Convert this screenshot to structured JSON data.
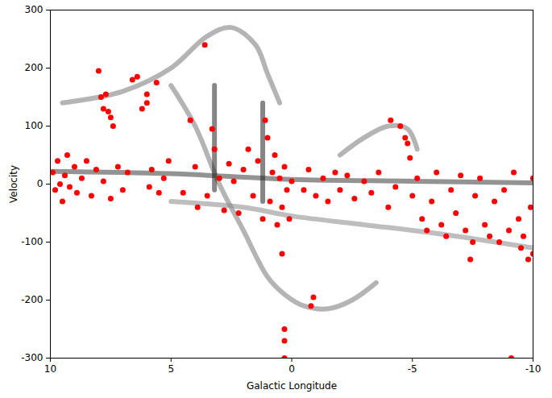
{
  "chart_data": {
    "type": "scatter",
    "x_label": "Galactic Longitude",
    "y_label": "Velocity",
    "xlim": [
      10,
      -10
    ],
    "xticks": [
      10,
      5,
      0,
      -5,
      -10
    ],
    "ylim": [
      -300,
      300
    ],
    "yticks": [
      -300,
      -200,
      -100,
      0,
      100,
      200,
      300
    ],
    "grid": false,
    "series": [
      {
        "type": "line",
        "color": "#3a3a3a",
        "x": [
          10,
          5,
          0,
          -5,
          -10
        ],
        "y": [
          22,
          18,
          8,
          5,
          2
        ]
      },
      {
        "type": "line",
        "color": "#777777",
        "x": [
          9.5,
          7,
          5,
          3.5,
          2.5,
          1.5,
          1,
          0.5
        ],
        "y": [
          140,
          160,
          200,
          255,
          270,
          240,
          190,
          140
        ]
      },
      {
        "type": "line",
        "color": "#777777",
        "x": [
          5,
          4,
          3,
          2,
          1,
          0.3,
          -0.5,
          -1.5,
          -2.5,
          -3.5
        ],
        "y": [
          170,
          100,
          0,
          -80,
          -160,
          -190,
          -210,
          -215,
          -200,
          -170
        ]
      },
      {
        "type": "line",
        "color": "#777777",
        "x": [
          -2,
          -3,
          -4,
          -4.8,
          -5.2
        ],
        "y": [
          50,
          80,
          100,
          95,
          60
        ]
      },
      {
        "type": "line",
        "color": "#888888",
        "x": [
          5,
          2,
          0,
          -3,
          -6,
          -10
        ],
        "y": [
          -30,
          -40,
          -55,
          -70,
          -85,
          -110
        ]
      },
      {
        "type": "line",
        "color": "#222222",
        "x": [
          3.2,
          3.2
        ],
        "y": [
          170,
          -10
        ]
      },
      {
        "type": "line",
        "color": "#222222",
        "x": [
          1.2,
          1.2
        ],
        "y": [
          140,
          -30
        ]
      },
      {
        "type": "scatter",
        "color": "#ff0000",
        "marker": "circle",
        "x": [
          9.9,
          9.8,
          9.7,
          9.6,
          9.5,
          9.4,
          9.3,
          9.2,
          9.0,
          8.9,
          8.7,
          8.5,
          8.3,
          8.1,
          8.0,
          7.9,
          7.8,
          7.7,
          7.6,
          7.5,
          7.4,
          7.8,
          7.5,
          7.2,
          7.0,
          6.8,
          6.6,
          6.4,
          6.2,
          6.0,
          6.0,
          5.9,
          5.8,
          5.6,
          5.5,
          5.3,
          5.1,
          4.5,
          4.2,
          4.0,
          3.9,
          3.6,
          3.5,
          3.3,
          3.2,
          3.0,
          2.8,
          2.6,
          2.4,
          2.2,
          2.0,
          1.8,
          1.6,
          1.4,
          1.2,
          1.1,
          1.0,
          0.9,
          0.8,
          0.7,
          0.6,
          0.5,
          0.4,
          0.3,
          0.2,
          0.1,
          0.0,
          0.3,
          0.3,
          0.3,
          0.4,
          -0.8,
          -0.9,
          -0.5,
          -0.7,
          -1.0,
          -1.3,
          -1.5,
          -1.8,
          -2.0,
          -2.3,
          -2.6,
          -3.0,
          -3.3,
          -3.6,
          -4.0,
          -4.1,
          -4.3,
          -4.5,
          -4.7,
          -4.8,
          -4.9,
          -5.0,
          -5.2,
          -5.4,
          -5.6,
          -5.8,
          -6.0,
          -6.2,
          -6.4,
          -6.6,
          -6.8,
          -7.0,
          -7.2,
          -7.4,
          -7.5,
          -7.6,
          -7.8,
          -8.0,
          -8.2,
          -8.4,
          -8.6,
          -8.8,
          -9.0,
          -9.1,
          -9.2,
          -9.4,
          -9.5,
          -9.6,
          -9.8,
          -9.9,
          -10.0,
          -10.0
        ],
        "y": [
          20,
          -10,
          40,
          0,
          -30,
          15,
          50,
          -5,
          30,
          -15,
          10,
          40,
          -20,
          25,
          195,
          150,
          130,
          155,
          125,
          115,
          100,
          5,
          -25,
          30,
          -10,
          20,
          180,
          185,
          130,
          140,
          155,
          -5,
          25,
          175,
          -15,
          10,
          40,
          -15,
          110,
          30,
          -40,
          240,
          -20,
          95,
          60,
          10,
          -45,
          35,
          5,
          -50,
          25,
          60,
          -20,
          40,
          -60,
          110,
          80,
          -30,
          20,
          50,
          -70,
          10,
          -40,
          30,
          -10,
          -60,
          5,
          -250,
          -270,
          -300,
          -120,
          -210,
          -195,
          -10,
          25,
          -20,
          10,
          -30,
          20,
          -10,
          15,
          -25,
          5,
          -15,
          20,
          -40,
          110,
          -5,
          100,
          80,
          70,
          45,
          -20,
          10,
          -60,
          -80,
          -30,
          20,
          -70,
          -90,
          -10,
          -50,
          15,
          -80,
          -130,
          -100,
          -20,
          10,
          -70,
          -90,
          -30,
          -100,
          -10,
          -80,
          -300,
          20,
          -60,
          -110,
          -90,
          -130,
          -40,
          10,
          -120
        ]
      }
    ]
  }
}
